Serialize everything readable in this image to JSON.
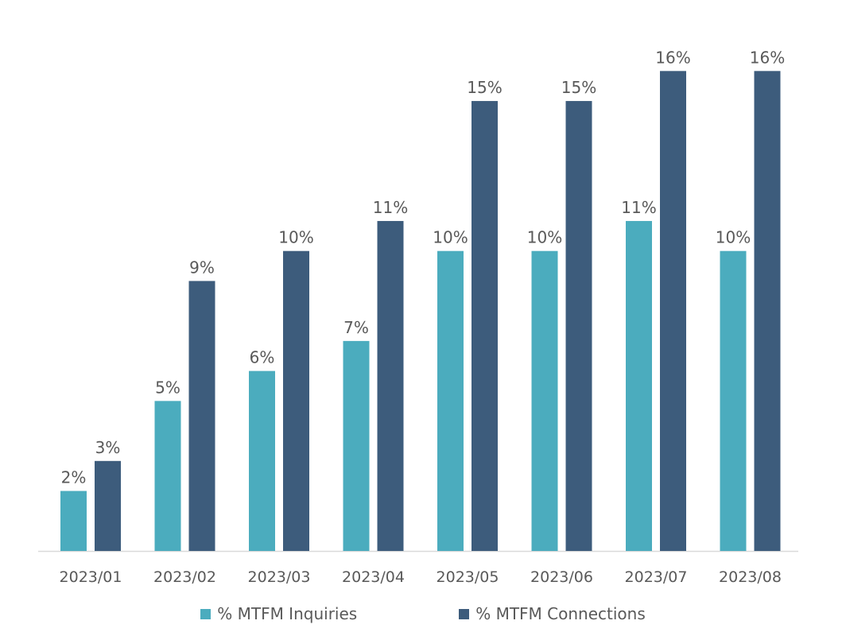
{
  "chart_data": {
    "type": "bar",
    "categories": [
      "2023/01",
      "2023/02",
      "2023/03",
      "2023/04",
      "2023/05",
      "2023/06",
      "2023/07",
      "2023/08"
    ],
    "series": [
      {
        "name": "% MTFM Inquiries",
        "color": "#4bacbe",
        "values": [
          2,
          5,
          6,
          7,
          10,
          10,
          11,
          10
        ],
        "labels": [
          "2%",
          "5%",
          "6%",
          "7%",
          "10%",
          "10%",
          "11%",
          "10%"
        ]
      },
      {
        "name": "% MTFM Connections",
        "color": "#3d5c7c",
        "values": [
          3,
          9,
          10,
          11,
          15,
          15,
          16,
          16
        ],
        "labels": [
          "3%",
          "9%",
          "10%",
          "11%",
          "15%",
          "15%",
          "16%",
          "16%"
        ]
      }
    ],
    "title": "",
    "xlabel": "",
    "ylabel": "",
    "ylim": [
      0,
      16.5
    ],
    "grid": false,
    "legend_position": "bottom",
    "axis_color": "#d9d9d9",
    "text_color": "#595959"
  }
}
